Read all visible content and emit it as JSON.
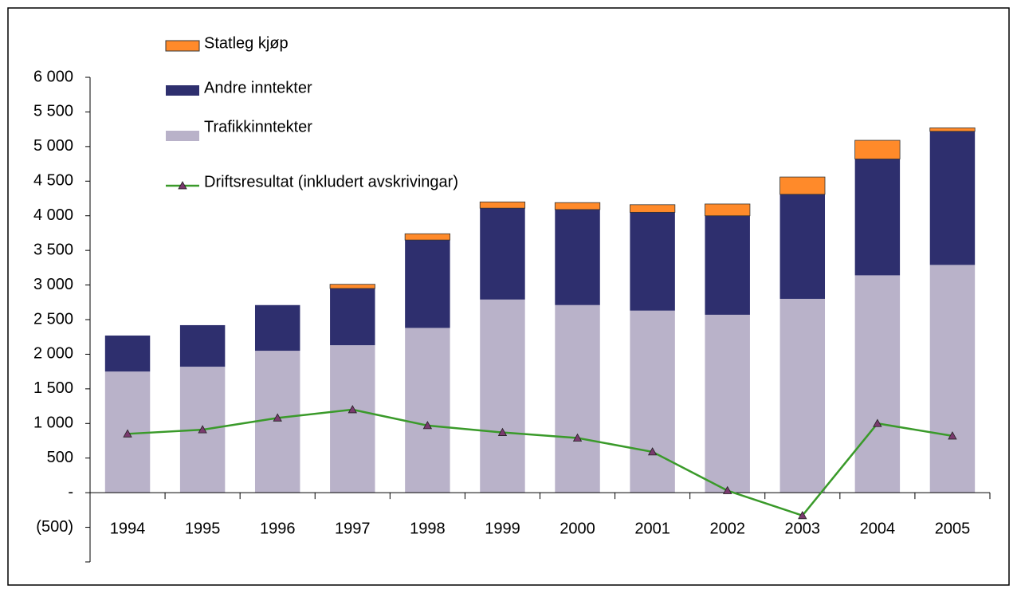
{
  "chart_data": {
    "type": "bar",
    "categories": [
      "1994",
      "1995",
      "1996",
      "1997",
      "1998",
      "1999",
      "2000",
      "2001",
      "2002",
      "2003",
      "2004",
      "2005"
    ],
    "series": [
      {
        "name": "Statleg kjøp",
        "kind": "bar",
        "color": "#ff8a2a",
        "values": [
          0,
          0,
          0,
          60,
          90,
          90,
          100,
          110,
          170,
          250,
          270,
          50
        ]
      },
      {
        "name": "Andre inntekter",
        "kind": "bar",
        "color": "#2e2f6e",
        "values": [
          520,
          600,
          660,
          820,
          1270,
          1320,
          1380,
          1420,
          1430,
          1510,
          1680,
          1930
        ]
      },
      {
        "name": "Trafikkinntekter",
        "kind": "bar",
        "color": "#b9b2c9",
        "values": [
          1750,
          1820,
          2050,
          2130,
          2380,
          2790,
          2710,
          2630,
          2570,
          2800,
          3140,
          3290
        ]
      },
      {
        "name": "Driftsresultat (inkludert avskrivingar)",
        "kind": "line",
        "color": "#3a9a2a",
        "marker_color": "#7a3a6e",
        "values": [
          850,
          910,
          1080,
          1200,
          970,
          870,
          790,
          590,
          30,
          -330,
          1000,
          820
        ]
      }
    ],
    "ylim": [
      -1000,
      6000
    ],
    "yticks": [
      {
        "value": -500,
        "label": "(500)"
      },
      {
        "value": 0,
        "label": "-"
      },
      500,
      {
        "value": 1000,
        "label": "1 000"
      },
      {
        "value": 1500,
        "label": "1 500"
      },
      {
        "value": 2000,
        "label": "2 000"
      },
      {
        "value": 2500,
        "label": "2 500"
      },
      {
        "value": 3000,
        "label": "3 000"
      },
      {
        "value": 3500,
        "label": "3 500"
      },
      {
        "value": 4000,
        "label": "4 000"
      },
      {
        "value": 4500,
        "label": "4 500"
      },
      {
        "value": 5000,
        "label": "5 000"
      },
      {
        "value": 5500,
        "label": "5 500"
      },
      {
        "value": 6000,
        "label": "6 000"
      }
    ],
    "grid": false,
    "legend": "top-left"
  }
}
